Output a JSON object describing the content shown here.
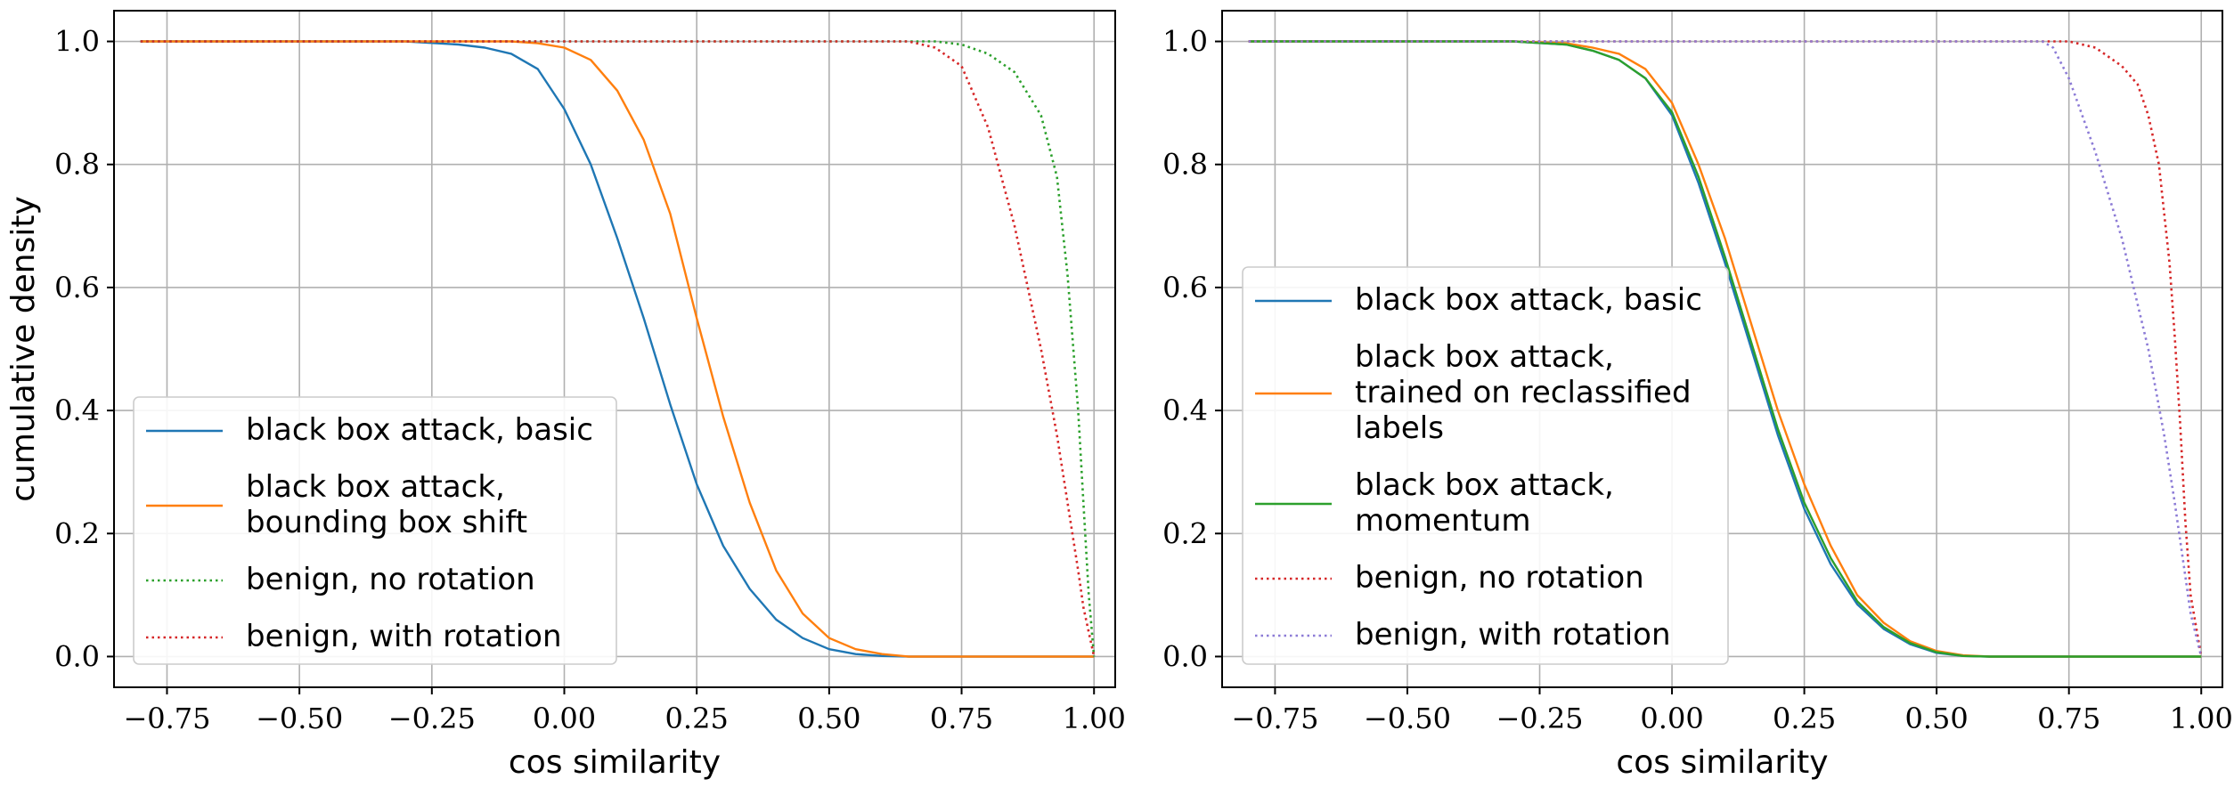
{
  "chart_data": [
    {
      "type": "line",
      "xlabel": "cos similarity",
      "ylabel": "cumulative density",
      "xlim": [
        -0.85,
        1.04
      ],
      "ylim": [
        -0.05,
        1.05
      ],
      "xticks": [
        -0.75,
        -0.5,
        -0.25,
        0.0,
        0.25,
        0.5,
        0.75,
        1.0
      ],
      "xtick_labels": [
        "−0.75",
        "−0.50",
        "−0.25",
        "0.00",
        "0.25",
        "0.50",
        "0.75",
        "1.00"
      ],
      "yticks": [
        0.0,
        0.2,
        0.4,
        0.6,
        0.8,
        1.0
      ],
      "ytick_labels": [
        "0.0",
        "0.2",
        "0.4",
        "0.6",
        "0.8",
        "1.0"
      ],
      "grid": true,
      "legend_position": "lower-left",
      "series": [
        {
          "name": "black box attack, basic",
          "color": "#1f77b4",
          "style": "solid",
          "x": [
            -0.8,
            -0.3,
            -0.2,
            -0.15,
            -0.1,
            -0.05,
            0.0,
            0.05,
            0.1,
            0.15,
            0.2,
            0.25,
            0.3,
            0.35,
            0.4,
            0.45,
            0.5,
            0.55,
            0.6,
            0.65,
            1.0
          ],
          "y": [
            1.0,
            1.0,
            0.995,
            0.99,
            0.98,
            0.955,
            0.89,
            0.8,
            0.68,
            0.55,
            0.41,
            0.28,
            0.18,
            0.11,
            0.06,
            0.03,
            0.012,
            0.004,
            0.001,
            0.0,
            0.0
          ]
        },
        {
          "name": "black box attack,\nbounding box shift",
          "color": "#ff7f0e",
          "style": "solid",
          "x": [
            -0.8,
            -0.1,
            -0.05,
            0.0,
            0.05,
            0.1,
            0.15,
            0.2,
            0.25,
            0.3,
            0.35,
            0.4,
            0.45,
            0.5,
            0.55,
            0.6,
            0.65,
            1.0
          ],
          "y": [
            1.0,
            1.0,
            0.997,
            0.99,
            0.97,
            0.92,
            0.84,
            0.72,
            0.55,
            0.39,
            0.25,
            0.14,
            0.07,
            0.03,
            0.012,
            0.004,
            0.0,
            0.0
          ]
        },
        {
          "name": "benign, no rotation",
          "color": "#2ca02c",
          "style": "dotted",
          "x": [
            -0.8,
            0.7,
            0.75,
            0.8,
            0.85,
            0.9,
            0.93,
            0.95,
            0.97,
            0.98,
            0.99,
            1.0
          ],
          "y": [
            1.0,
            1.0,
            0.995,
            0.98,
            0.95,
            0.88,
            0.78,
            0.62,
            0.4,
            0.25,
            0.1,
            0.0
          ]
        },
        {
          "name": "benign, with rotation",
          "color": "#d62728",
          "style": "dotted",
          "x": [
            -0.8,
            0.65,
            0.7,
            0.75,
            0.8,
            0.85,
            0.9,
            0.93,
            0.95,
            0.97,
            0.98,
            1.0
          ],
          "y": [
            1.0,
            1.0,
            0.99,
            0.96,
            0.86,
            0.7,
            0.5,
            0.36,
            0.25,
            0.14,
            0.08,
            0.0
          ]
        }
      ]
    },
    {
      "type": "line",
      "xlabel": "cos similarity",
      "ylabel": "",
      "xlim": [
        -0.85,
        1.04
      ],
      "ylim": [
        -0.05,
        1.05
      ],
      "xticks": [
        -0.75,
        -0.5,
        -0.25,
        0.0,
        0.25,
        0.5,
        0.75,
        1.0
      ],
      "xtick_labels": [
        "−0.75",
        "−0.50",
        "−0.25",
        "0.00",
        "0.25",
        "0.50",
        "0.75",
        "1.00"
      ],
      "yticks": [
        0.0,
        0.2,
        0.4,
        0.6,
        0.8,
        1.0
      ],
      "ytick_labels": [
        "0.0",
        "0.2",
        "0.4",
        "0.6",
        "0.8",
        "1.0"
      ],
      "grid": true,
      "legend_position": "lower-left",
      "series": [
        {
          "name": "black box attack, basic",
          "color": "#1f77b4",
          "style": "solid",
          "x": [
            -0.8,
            -0.3,
            -0.2,
            -0.15,
            -0.1,
            -0.05,
            0.0,
            0.05,
            0.1,
            0.15,
            0.2,
            0.25,
            0.3,
            0.35,
            0.4,
            0.45,
            0.5,
            0.55,
            0.6,
            1.0
          ],
          "y": [
            1.0,
            1.0,
            0.995,
            0.985,
            0.97,
            0.94,
            0.88,
            0.77,
            0.64,
            0.5,
            0.36,
            0.24,
            0.15,
            0.085,
            0.045,
            0.02,
            0.006,
            0.001,
            0.0,
            0.0
          ]
        },
        {
          "name": "black box attack,\ntrained on reclassified\nlabels",
          "color": "#ff7f0e",
          "style": "solid",
          "x": [
            -0.8,
            -0.3,
            -0.2,
            -0.15,
            -0.1,
            -0.05,
            0.0,
            0.05,
            0.1,
            0.15,
            0.2,
            0.25,
            0.3,
            0.35,
            0.4,
            0.45,
            0.5,
            0.55,
            0.6,
            1.0
          ],
          "y": [
            1.0,
            1.0,
            0.997,
            0.99,
            0.98,
            0.955,
            0.9,
            0.8,
            0.68,
            0.54,
            0.4,
            0.28,
            0.18,
            0.1,
            0.055,
            0.025,
            0.009,
            0.002,
            0.0,
            0.0
          ]
        },
        {
          "name": "black box attack,\nmomentum",
          "color": "#2ca02c",
          "style": "solid",
          "x": [
            -0.8,
            -0.3,
            -0.2,
            -0.15,
            -0.1,
            -0.05,
            0.0,
            0.05,
            0.1,
            0.15,
            0.2,
            0.25,
            0.3,
            0.35,
            0.4,
            0.45,
            0.5,
            0.55,
            0.6,
            1.0
          ],
          "y": [
            1.0,
            1.0,
            0.995,
            0.985,
            0.97,
            0.94,
            0.885,
            0.78,
            0.65,
            0.51,
            0.37,
            0.25,
            0.16,
            0.09,
            0.048,
            0.022,
            0.007,
            0.001,
            0.0,
            0.0
          ]
        },
        {
          "name": "benign, no rotation",
          "color": "#d62728",
          "style": "dotted",
          "x": [
            -0.8,
            0.75,
            0.8,
            0.85,
            0.88,
            0.9,
            0.92,
            0.94,
            0.95,
            0.96,
            0.97,
            0.98,
            1.0
          ],
          "y": [
            1.0,
            1.0,
            0.99,
            0.96,
            0.93,
            0.88,
            0.8,
            0.64,
            0.52,
            0.38,
            0.22,
            0.1,
            0.0
          ]
        },
        {
          "name": "benign, with rotation",
          "color": "#8c7bd6",
          "style": "dotted",
          "x": [
            -0.8,
            0.7,
            0.72,
            0.75,
            0.8,
            0.85,
            0.9,
            0.93,
            0.95,
            0.97,
            0.98,
            1.0
          ],
          "y": [
            1.0,
            1.0,
            0.99,
            0.94,
            0.82,
            0.68,
            0.5,
            0.36,
            0.25,
            0.13,
            0.07,
            0.0
          ]
        }
      ]
    }
  ]
}
